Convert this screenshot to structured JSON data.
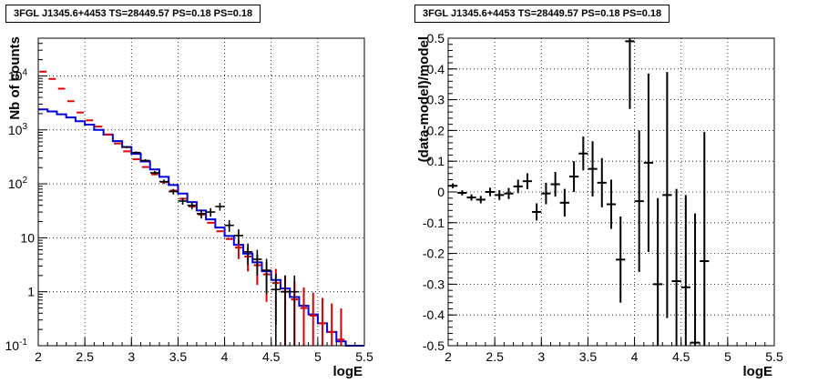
{
  "chart_data": [
    {
      "type": "histogram",
      "title": "3FGL J1345.6+4453 TS=28449.57 PS=0.18 PS=0.18",
      "xlabel": "logE",
      "ylabel": "Nb of counts",
      "xlim": [
        2,
        5.5
      ],
      "ylim": [
        0.1,
        50000
      ],
      "yscale": "log",
      "grid": true,
      "x_ticks": [
        "2",
        "2.5",
        "3",
        "3.5",
        "4",
        "4.5",
        "5",
        "5.5"
      ],
      "y_ticks": [
        {
          "base": "10",
          "exp": "-1"
        },
        {
          "base": "1",
          "exp": ""
        },
        {
          "base": "10",
          "exp": ""
        },
        {
          "base": "10",
          "exp": "2"
        },
        {
          "base": "10",
          "exp": "3"
        },
        {
          "base": "10",
          "exp": "4"
        }
      ],
      "bin_width": 0.1,
      "bin_centers": [
        2.05,
        2.15,
        2.25,
        2.35,
        2.45,
        2.55,
        2.65,
        2.75,
        2.85,
        2.95,
        3.05,
        3.15,
        3.25,
        3.35,
        3.45,
        3.55,
        3.65,
        3.75,
        3.85,
        3.95,
        4.05,
        4.15,
        4.25,
        4.35,
        4.45,
        4.55,
        4.65,
        4.75,
        4.85,
        4.95,
        5.05,
        5.15,
        5.25,
        5.35,
        5.45
      ],
      "series": [
        {
          "color": "#dd0000",
          "style": "markers",
          "values": [
            12000,
            8800,
            5800,
            3400,
            2100,
            1500,
            1150,
            820,
            560,
            400,
            285,
            205,
            150,
            108,
            75,
            53,
            38,
            27,
            19,
            13.2,
            9.5,
            6.6,
            4.5,
            3.1,
            2.1,
            1.45,
            1.0,
            0.72,
            0.5,
            0.36,
            0.26,
            0.18,
            0.13
          ]
        },
        {
          "color": "#0000dd",
          "style": "step",
          "values": [
            2400,
            2200,
            1950,
            1700,
            1450,
            1250,
            1000,
            820,
            620,
            480,
            360,
            260,
            185,
            135,
            95,
            66,
            46,
            32,
            22,
            15.5,
            10.8,
            7.4,
            5.1,
            3.5,
            2.4,
            1.65,
            1.15,
            0.8,
            0.55,
            0.38,
            0.26,
            0.18,
            0.12,
            0.1,
            0.1
          ]
        },
        {
          "color": "#000000",
          "style": "errorbars",
          "points": [
            {
              "x": 2.95,
              "y": 480
            },
            {
              "x": 3.05,
              "y": 380
            },
            {
              "x": 3.15,
              "y": 270
            },
            {
              "x": 3.25,
              "y": 160
            },
            {
              "x": 3.35,
              "y": 110
            },
            {
              "x": 3.45,
              "y": 72
            },
            {
              "x": 3.55,
              "y": 48
            },
            {
              "x": 3.65,
              "y": 40
            },
            {
              "x": 3.75,
              "y": 28
            },
            {
              "x": 3.85,
              "y": 30
            },
            {
              "x": 3.95,
              "y": 38
            },
            {
              "x": 4.05,
              "y": 17
            },
            {
              "x": 4.15,
              "y": 11
            },
            {
              "x": 4.25,
              "y": 5.5
            },
            {
              "x": 4.35,
              "y": 4
            },
            {
              "x": 4.45,
              "y": 2.5
            },
            {
              "x": 4.55,
              "y": 1.1
            },
            {
              "x": 4.65,
              "y": 1.0
            },
            {
              "x": 4.75,
              "y": 1.0
            }
          ]
        }
      ]
    },
    {
      "type": "scatter",
      "title": "3FGL J1345.6+4453 TS=28449.57 PS=0.18 PS=0.18",
      "xlabel": "logE",
      "ylabel": "(data-model)/model",
      "xlim": [
        2,
        5.5
      ],
      "ylim": [
        -0.5,
        0.5
      ],
      "grid": true,
      "x_ticks": [
        "2",
        "2.5",
        "3",
        "3.5",
        "4",
        "4.5",
        "5",
        "5.5"
      ],
      "y_ticks": [
        "-0.5",
        "-0.4",
        "-0.3",
        "-0.2",
        "-0.1",
        "0",
        "0.1",
        "0.2",
        "0.3",
        "0.4",
        "0.5"
      ],
      "series": [
        {
          "color": "#000000",
          "points": [
            {
              "x": 2.05,
              "y": 0.02,
              "err": 0.008
            },
            {
              "x": 2.15,
              "y": -0.003,
              "err": 0.008
            },
            {
              "x": 2.25,
              "y": -0.018,
              "err": 0.01
            },
            {
              "x": 2.35,
              "y": -0.025,
              "err": 0.012
            },
            {
              "x": 2.45,
              "y": 0.0,
              "err": 0.014
            },
            {
              "x": 2.55,
              "y": -0.01,
              "err": 0.016
            },
            {
              "x": 2.65,
              "y": -0.005,
              "err": 0.018
            },
            {
              "x": 2.75,
              "y": 0.018,
              "err": 0.022
            },
            {
              "x": 2.85,
              "y": 0.035,
              "err": 0.026
            },
            {
              "x": 2.95,
              "y": -0.065,
              "err": 0.028
            },
            {
              "x": 3.05,
              "y": -0.005,
              "err": 0.035
            },
            {
              "x": 3.15,
              "y": 0.025,
              "err": 0.04
            },
            {
              "x": 3.25,
              "y": -0.035,
              "err": 0.045
            },
            {
              "x": 3.35,
              "y": 0.05,
              "err": 0.05
            },
            {
              "x": 3.45,
              "y": 0.125,
              "err": 0.055
            },
            {
              "x": 3.55,
              "y": 0.075,
              "err": 0.09
            },
            {
              "x": 3.65,
              "y": 0.03,
              "err": 0.08
            },
            {
              "x": 3.75,
              "y": -0.04,
              "err": 0.08
            },
            {
              "x": 3.85,
              "y": -0.22,
              "err": 0.14
            },
            {
              "x": 3.95,
              "y": 0.49,
              "err": 0.22
            },
            {
              "x": 4.05,
              "y": -0.03,
              "err": 0.23
            },
            {
              "x": 4.15,
              "y": 0.095,
              "err": 0.29
            },
            {
              "x": 4.25,
              "y": -0.3,
              "err": 0.28
            },
            {
              "x": 4.35,
              "y": -0.01,
              "err": 0.4
            },
            {
              "x": 4.45,
              "y": -0.29,
              "err": 0.3
            },
            {
              "x": 4.55,
              "y": -0.31,
              "err": 0.3
            },
            {
              "x": 4.65,
              "y": -0.49,
              "err": 0.42
            },
            {
              "x": 4.75,
              "y": -0.225,
              "err": 0.42
            }
          ]
        }
      ]
    }
  ]
}
